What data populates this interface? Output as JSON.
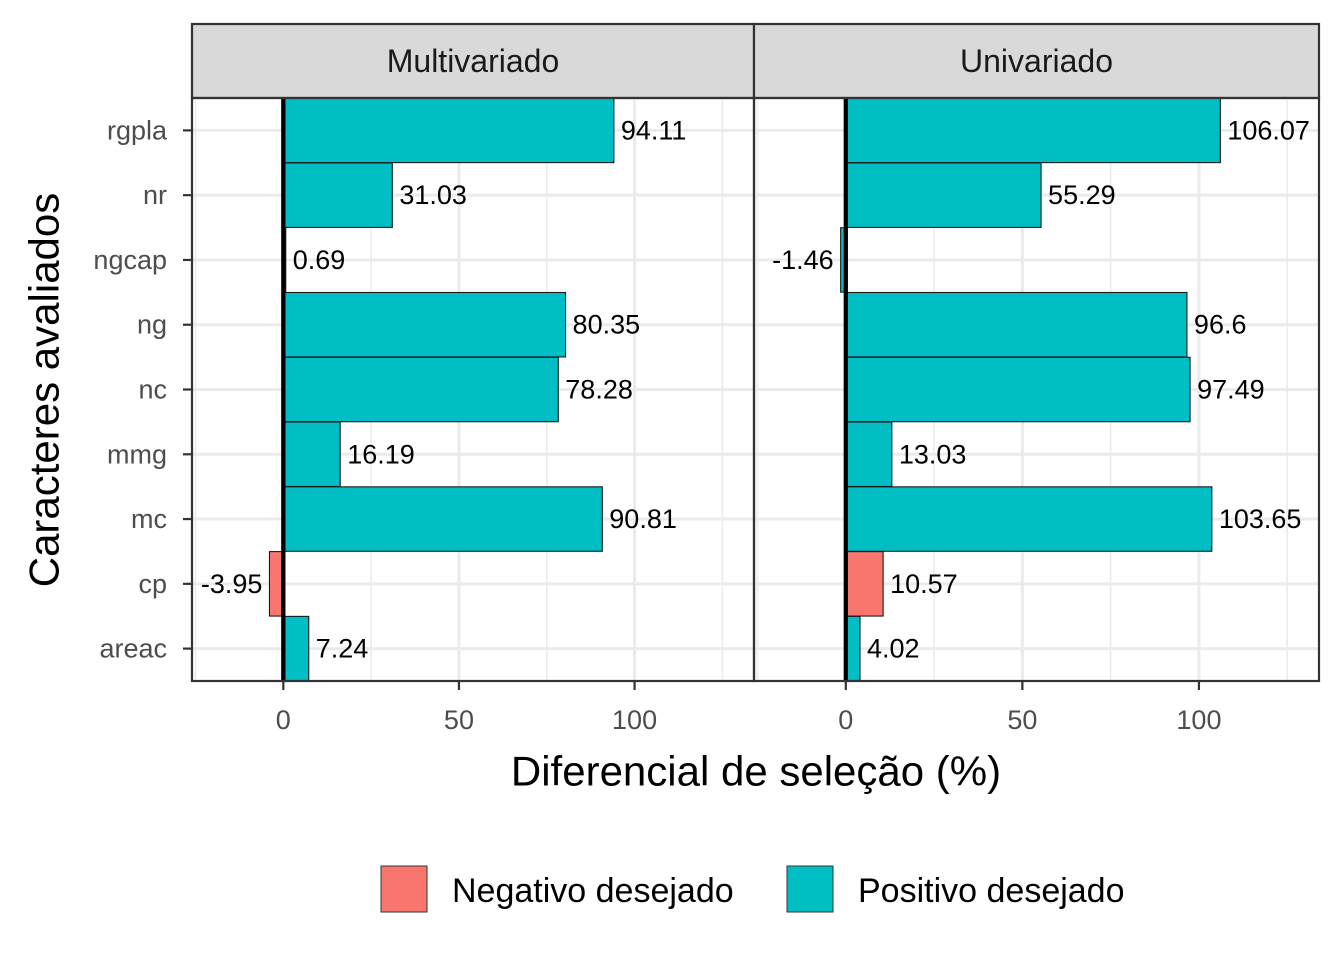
{
  "chart_data": {
    "type": "bar",
    "orientation": "horizontal",
    "xlabel": "Diferencial de seleção (%)",
    "ylabel": "Caracteres avaliados",
    "categories": [
      "rgpla",
      "nr",
      "ngcap",
      "ng",
      "nc",
      "mmg",
      "mc",
      "cp",
      "areac"
    ],
    "xlim": [
      -26,
      134
    ],
    "x_ticks": [
      0,
      50,
      100
    ],
    "grid": true,
    "legend": {
      "position": "bottom",
      "entries": [
        {
          "key": "neg",
          "label": "Negativo desejado",
          "color": "#F8766D"
        },
        {
          "key": "pos",
          "label": "Positivo desejado",
          "color": "#00BFC4"
        }
      ]
    },
    "panels": [
      {
        "title": "Multivariado",
        "values": [
          94.11,
          31.03,
          0.69,
          80.35,
          78.28,
          16.19,
          90.81,
          -3.95,
          7.24
        ],
        "labels": [
          "94.11",
          "31.03",
          "0.69",
          "80.35",
          "78.28",
          "16.19",
          "90.81",
          "-3.95",
          "7.24"
        ],
        "groups": [
          "pos",
          "pos",
          "pos",
          "pos",
          "pos",
          "pos",
          "pos",
          "neg",
          "pos"
        ]
      },
      {
        "title": "Univariado",
        "values": [
          106.07,
          55.29,
          -1.46,
          96.6,
          97.49,
          13.03,
          103.65,
          10.57,
          4.02
        ],
        "labels": [
          "106.07",
          "55.29",
          "-1.46",
          "96.6",
          "97.49",
          "13.03",
          "103.65",
          "10.57",
          "4.02"
        ],
        "groups": [
          "pos",
          "pos",
          "pos",
          "pos",
          "pos",
          "pos",
          "pos",
          "neg",
          "pos"
        ]
      }
    ]
  }
}
